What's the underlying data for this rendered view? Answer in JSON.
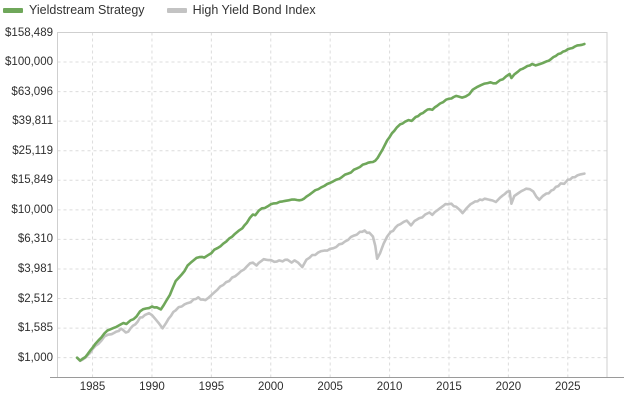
{
  "legend": [
    {
      "label": "Yieldstream Strategy",
      "color": "#6fa75a"
    },
    {
      "label": "High Yield Bond Index",
      "color": "#c3c3c3"
    }
  ],
  "chart_data": {
    "type": "line",
    "title": "",
    "xlabel": "",
    "ylabel": "",
    "y_scale": "log",
    "grid": true,
    "legend_position": "top-left",
    "x_domain": [
      1982.05,
      2028.3
    ],
    "y_domain": [
      734,
      158489
    ],
    "x_ticks": [
      {
        "label": "1985",
        "value": 1985
      },
      {
        "label": "1990",
        "value": 1990
      },
      {
        "label": "1995",
        "value": 1995
      },
      {
        "label": "2000",
        "value": 2000
      },
      {
        "label": "2005",
        "value": 2005
      },
      {
        "label": "2010",
        "value": 2010
      },
      {
        "label": "2015",
        "value": 2015
      },
      {
        "label": "2020",
        "value": 2020
      },
      {
        "label": "2025",
        "value": 2025
      }
    ],
    "y_ticks": [
      {
        "label": "$158,489",
        "value": 158489
      },
      {
        "label": "$100,000",
        "value": 100000
      },
      {
        "label": "$63,096",
        "value": 63096
      },
      {
        "label": "$39,811",
        "value": 39811
      },
      {
        "label": "$25,119",
        "value": 25119
      },
      {
        "label": "$15,849",
        "value": 15849
      },
      {
        "label": "$10,000",
        "value": 10000
      },
      {
        "label": "$6,310",
        "value": 6310
      },
      {
        "label": "$3,981",
        "value": 3981
      },
      {
        "label": "$2,512",
        "value": 2512
      },
      {
        "label": "$1,585",
        "value": 1585
      },
      {
        "label": "$1,000",
        "value": 1000
      }
    ],
    "series": [
      {
        "name": "High Yield Bond Index",
        "color": "#c3c3c3",
        "points": [
          [
            1983.7,
            1000
          ],
          [
            1983.95,
            950
          ],
          [
            1984.2,
            975
          ],
          [
            1984.6,
            1040
          ],
          [
            1985.0,
            1140
          ],
          [
            1985.5,
            1240
          ],
          [
            1986.0,
            1390
          ],
          [
            1986.3,
            1430
          ],
          [
            1986.6,
            1440
          ],
          [
            1987.0,
            1500
          ],
          [
            1987.4,
            1570
          ],
          [
            1987.8,
            1480
          ],
          [
            1988.2,
            1580
          ],
          [
            1988.6,
            1680
          ],
          [
            1989.0,
            1870
          ],
          [
            1989.4,
            1940
          ],
          [
            1989.75,
            2000
          ],
          [
            1990.0,
            1940
          ],
          [
            1990.3,
            1820
          ],
          [
            1990.6,
            1700
          ],
          [
            1990.9,
            1580
          ],
          [
            1991.2,
            1720
          ],
          [
            1991.6,
            1920
          ],
          [
            1992.0,
            2090
          ],
          [
            1992.5,
            2220
          ],
          [
            1993.0,
            2340
          ],
          [
            1993.5,
            2480
          ],
          [
            1993.9,
            2560
          ],
          [
            1994.3,
            2470
          ],
          [
            1994.7,
            2520
          ],
          [
            1995.0,
            2650
          ],
          [
            1995.5,
            2880
          ],
          [
            1996.0,
            3100
          ],
          [
            1996.5,
            3300
          ],
          [
            1997.0,
            3550
          ],
          [
            1997.5,
            3850
          ],
          [
            1998.0,
            4150
          ],
          [
            1998.5,
            4400
          ],
          [
            1998.8,
            4200
          ],
          [
            1999.2,
            4500
          ],
          [
            1999.6,
            4600
          ],
          [
            2000.0,
            4580
          ],
          [
            2000.3,
            4450
          ],
          [
            2000.7,
            4550
          ],
          [
            2001.0,
            4480
          ],
          [
            2001.4,
            4600
          ],
          [
            2001.75,
            4400
          ],
          [
            2002.0,
            4550
          ],
          [
            2002.3,
            4400
          ],
          [
            2002.65,
            4100
          ],
          [
            2003.0,
            4600
          ],
          [
            2003.5,
            4950
          ],
          [
            2004.0,
            5150
          ],
          [
            2004.5,
            5300
          ],
          [
            2005.0,
            5450
          ],
          [
            2005.5,
            5600
          ],
          [
            2006.0,
            5900
          ],
          [
            2006.5,
            6250
          ],
          [
            2007.0,
            6700
          ],
          [
            2007.5,
            7100
          ],
          [
            2007.9,
            7250
          ],
          [
            2008.3,
            7000
          ],
          [
            2008.6,
            6600
          ],
          [
            2008.8,
            5700
          ],
          [
            2008.95,
            4670
          ],
          [
            2009.2,
            5100
          ],
          [
            2009.5,
            5900
          ],
          [
            2009.8,
            6600
          ],
          [
            2010.1,
            7100
          ],
          [
            2010.5,
            7600
          ],
          [
            2010.9,
            8000
          ],
          [
            2011.2,
            8300
          ],
          [
            2011.45,
            8460
          ],
          [
            2011.8,
            7850
          ],
          [
            2012.1,
            8400
          ],
          [
            2012.5,
            8800
          ],
          [
            2013.0,
            9300
          ],
          [
            2013.35,
            9600
          ],
          [
            2013.6,
            9250
          ],
          [
            2014.0,
            9900
          ],
          [
            2014.5,
            10600
          ],
          [
            2014.9,
            10900
          ],
          [
            2015.2,
            11000
          ],
          [
            2015.6,
            10500
          ],
          [
            2015.9,
            10000
          ],
          [
            2016.15,
            9500
          ],
          [
            2016.5,
            10300
          ],
          [
            2016.8,
            10900
          ],
          [
            2017.2,
            11400
          ],
          [
            2017.6,
            11750
          ],
          [
            2018.0,
            11900
          ],
          [
            2018.4,
            11700
          ],
          [
            2018.95,
            11300
          ],
          [
            2019.3,
            12100
          ],
          [
            2019.7,
            12800
          ],
          [
            2020.1,
            13400
          ],
          [
            2020.25,
            11000
          ],
          [
            2020.5,
            12400
          ],
          [
            2020.8,
            12900
          ],
          [
            2021.1,
            13400
          ],
          [
            2021.5,
            13900
          ],
          [
            2021.8,
            13800
          ],
          [
            2022.1,
            13300
          ],
          [
            2022.35,
            12300
          ],
          [
            2022.6,
            11700
          ],
          [
            2022.9,
            12400
          ],
          [
            2023.2,
            12900
          ],
          [
            2023.6,
            13500
          ],
          [
            2024.0,
            14300
          ],
          [
            2024.4,
            15100
          ],
          [
            2024.7,
            15000
          ],
          [
            2025.0,
            16000
          ],
          [
            2025.4,
            16600
          ],
          [
            2025.8,
            17100
          ],
          [
            2026.1,
            17400
          ],
          [
            2026.4,
            17600
          ]
        ]
      },
      {
        "name": "Yieldstream Strategy",
        "color": "#6fa75a",
        "points": [
          [
            1983.7,
            1000
          ],
          [
            1983.95,
            955
          ],
          [
            1984.2,
            985
          ],
          [
            1984.6,
            1060
          ],
          [
            1985.0,
            1165
          ],
          [
            1985.5,
            1310
          ],
          [
            1986.0,
            1460
          ],
          [
            1986.5,
            1555
          ],
          [
            1987.0,
            1615
          ],
          [
            1987.6,
            1715
          ],
          [
            1987.85,
            1690
          ],
          [
            1988.2,
            1790
          ],
          [
            1988.7,
            1900
          ],
          [
            1989.0,
            2060
          ],
          [
            1989.5,
            2150
          ],
          [
            1990.0,
            2220
          ],
          [
            1990.4,
            2190
          ],
          [
            1990.75,
            2120
          ],
          [
            1991.0,
            2270
          ],
          [
            1991.5,
            2650
          ],
          [
            1992.0,
            3300
          ],
          [
            1992.5,
            3650
          ],
          [
            1993.0,
            4200
          ],
          [
            1993.5,
            4550
          ],
          [
            1994.0,
            4790
          ],
          [
            1994.4,
            4750
          ],
          [
            1995.0,
            5100
          ],
          [
            1995.5,
            5500
          ],
          [
            1996.0,
            5900
          ],
          [
            1996.5,
            6400
          ],
          [
            1997.0,
            6900
          ],
          [
            1997.6,
            7500
          ],
          [
            1998.0,
            8200
          ],
          [
            1998.5,
            9300
          ],
          [
            1998.7,
            9200
          ],
          [
            1999.0,
            9900
          ],
          [
            1999.5,
            10300
          ],
          [
            2000.0,
            10900
          ],
          [
            2000.5,
            11100
          ],
          [
            2001.0,
            11400
          ],
          [
            2001.5,
            11600
          ],
          [
            2002.0,
            11750
          ],
          [
            2002.4,
            11600
          ],
          [
            2002.8,
            11900
          ],
          [
            2003.0,
            12300
          ],
          [
            2003.5,
            13100
          ],
          [
            2004.0,
            13800
          ],
          [
            2004.5,
            14500
          ],
          [
            2005.0,
            15250
          ],
          [
            2005.5,
            16000
          ],
          [
            2006.0,
            16700
          ],
          [
            2006.5,
            17600
          ],
          [
            2007.0,
            18700
          ],
          [
            2007.5,
            19500
          ],
          [
            2008.0,
            20500
          ],
          [
            2008.4,
            21000
          ],
          [
            2008.8,
            21500
          ],
          [
            2009.0,
            22500
          ],
          [
            2009.4,
            25500
          ],
          [
            2009.8,
            29500
          ],
          [
            2010.2,
            33000
          ],
          [
            2010.6,
            36000
          ],
          [
            2010.9,
            38000
          ],
          [
            2011.3,
            39500
          ],
          [
            2011.6,
            40500
          ],
          [
            2011.85,
            40000
          ],
          [
            2012.2,
            42500
          ],
          [
            2012.6,
            44500
          ],
          [
            2013.0,
            46500
          ],
          [
            2013.4,
            48000
          ],
          [
            2013.6,
            47500
          ],
          [
            2014.0,
            50500
          ],
          [
            2014.5,
            53500
          ],
          [
            2015.0,
            56500
          ],
          [
            2015.4,
            58000
          ],
          [
            2015.8,
            58500
          ],
          [
            2016.1,
            57500
          ],
          [
            2016.4,
            58500
          ],
          [
            2016.7,
            60500
          ],
          [
            2017.0,
            65000
          ],
          [
            2017.4,
            68000
          ],
          [
            2018.0,
            71500
          ],
          [
            2018.5,
            73000
          ],
          [
            2018.95,
            71800
          ],
          [
            2019.3,
            75500
          ],
          [
            2019.8,
            80000
          ],
          [
            2020.1,
            83000
          ],
          [
            2020.25,
            78000
          ],
          [
            2020.5,
            82500
          ],
          [
            2020.8,
            86000
          ],
          [
            2021.2,
            90000
          ],
          [
            2021.6,
            94000
          ],
          [
            2022.0,
            97000
          ],
          [
            2022.3,
            95000
          ],
          [
            2022.6,
            96500
          ],
          [
            2022.9,
            98500
          ],
          [
            2023.2,
            101000
          ],
          [
            2023.6,
            105000
          ],
          [
            2024.0,
            110000
          ],
          [
            2024.4,
            114500
          ],
          [
            2024.8,
            119000
          ],
          [
            2025.2,
            123500
          ],
          [
            2025.6,
            127500
          ],
          [
            2026.0,
            130000
          ],
          [
            2026.4,
            132500
          ]
        ]
      }
    ],
    "colors": {
      "grid": "#dcdcdc",
      "border": "#cfcfcf",
      "axis_line": "#9a9a9a",
      "tick_text": "#2f2f2f",
      "background": "#ffffff"
    }
  }
}
